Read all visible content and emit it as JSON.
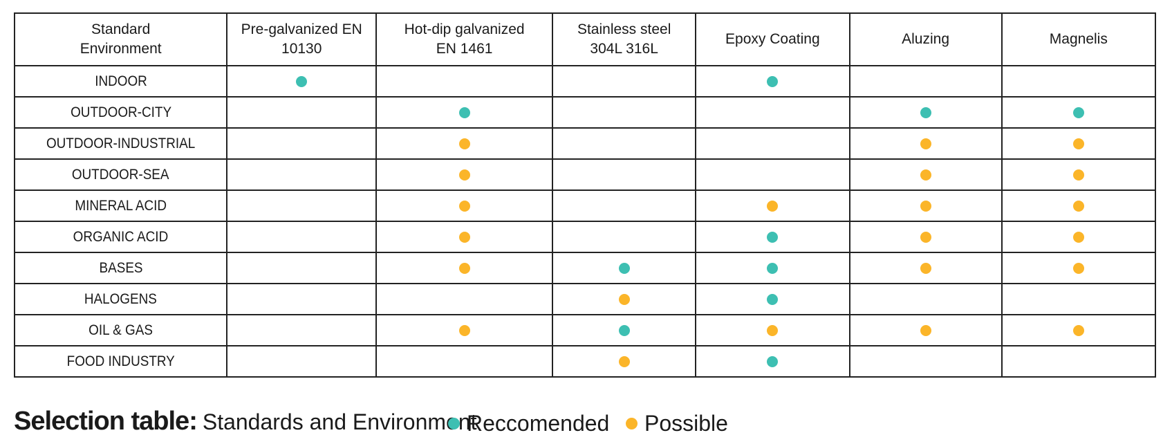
{
  "table": {
    "columns": [
      "Standard\nEnvironment",
      "Pre-galvanized EN\n10130",
      "Hot-dip galvanized\nEN 1461",
      "Stainless steel\n304L 316L",
      "Epoxy Coating",
      "Aluzing",
      "Magnelis"
    ],
    "rows": [
      {
        "environment": "INDOOR",
        "marks": [
          "recommended",
          "",
          "",
          "recommended",
          "",
          ""
        ]
      },
      {
        "environment": "OUTDOOR-CITY",
        "marks": [
          "",
          "recommended",
          "",
          "",
          "recommended",
          "recommended"
        ]
      },
      {
        "environment": "OUTDOOR-INDUSTRIAL",
        "marks": [
          "",
          "possible",
          "",
          "",
          "possible",
          "possible"
        ]
      },
      {
        "environment": "OUTDOOR-SEA",
        "marks": [
          "",
          "possible",
          "",
          "",
          "possible",
          "possible"
        ]
      },
      {
        "environment": "MINERAL ACID",
        "marks": [
          "",
          "possible",
          "",
          "possible",
          "possible",
          "possible"
        ]
      },
      {
        "environment": "ORGANIC ACID",
        "marks": [
          "",
          "possible",
          "",
          "recommended",
          "possible",
          "possible"
        ]
      },
      {
        "environment": "BASES",
        "marks": [
          "",
          "possible",
          "recommended",
          "recommended",
          "possible",
          "possible"
        ]
      },
      {
        "environment": "HALOGENS",
        "marks": [
          "",
          "",
          "possible",
          "recommended",
          "",
          ""
        ]
      },
      {
        "environment": "OIL & GAS",
        "marks": [
          "",
          "possible",
          "recommended",
          "possible",
          "possible",
          "possible"
        ]
      },
      {
        "environment": "FOOD INDUSTRY",
        "marks": [
          "",
          "",
          "possible",
          "recommended",
          "",
          ""
        ]
      }
    ]
  },
  "caption": {
    "bold": "Selection table:",
    "rest": "Standards and Environment"
  },
  "legend": {
    "recommended_label": "Reccomended",
    "possible_label": "Possible"
  },
  "colors": {
    "recommended": "#3dbfb2",
    "possible": "#fbb529"
  }
}
